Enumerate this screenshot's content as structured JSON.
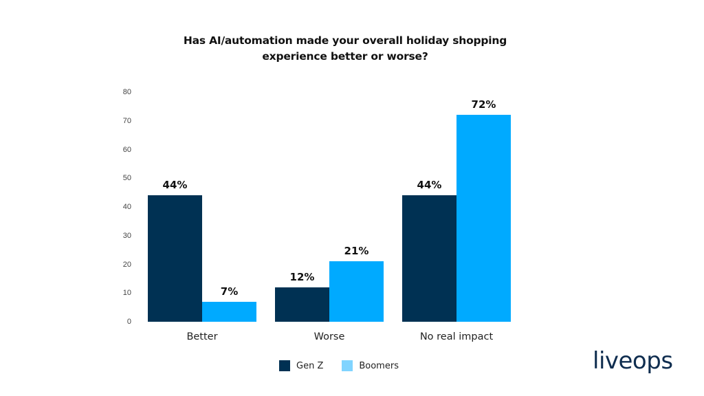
{
  "chart_data": {
    "type": "bar",
    "title": "Has AI/automation made your overall holiday shopping experience better or worse?",
    "title_lines": [
      "Has AI/automation made your overall holiday shopping",
      "experience better or worse?"
    ],
    "categories": [
      "Better",
      "Worse",
      "No real impact"
    ],
    "series": [
      {
        "name": "Gen Z",
        "color": "#003153",
        "legend_color": "#003153",
        "values": [
          44,
          12,
          44
        ],
        "labels": [
          "44%",
          "12%",
          "44%"
        ]
      },
      {
        "name": "Boomers",
        "color": "#00AAFF",
        "legend_color": "#80D4FF",
        "values": [
          7,
          21,
          72
        ],
        "labels": [
          "7%",
          "21%",
          "72%"
        ]
      }
    ],
    "xlabel": "",
    "ylabel": "",
    "ylim": [
      0,
      80
    ],
    "yticks": [
      "0",
      "10",
      "20",
      "30",
      "40",
      "50",
      "60",
      "70",
      "80"
    ],
    "grid": false,
    "legend_position": "bottom"
  },
  "brand": {
    "logo_text": "liveops",
    "logo_color": "#0F2D4F"
  }
}
